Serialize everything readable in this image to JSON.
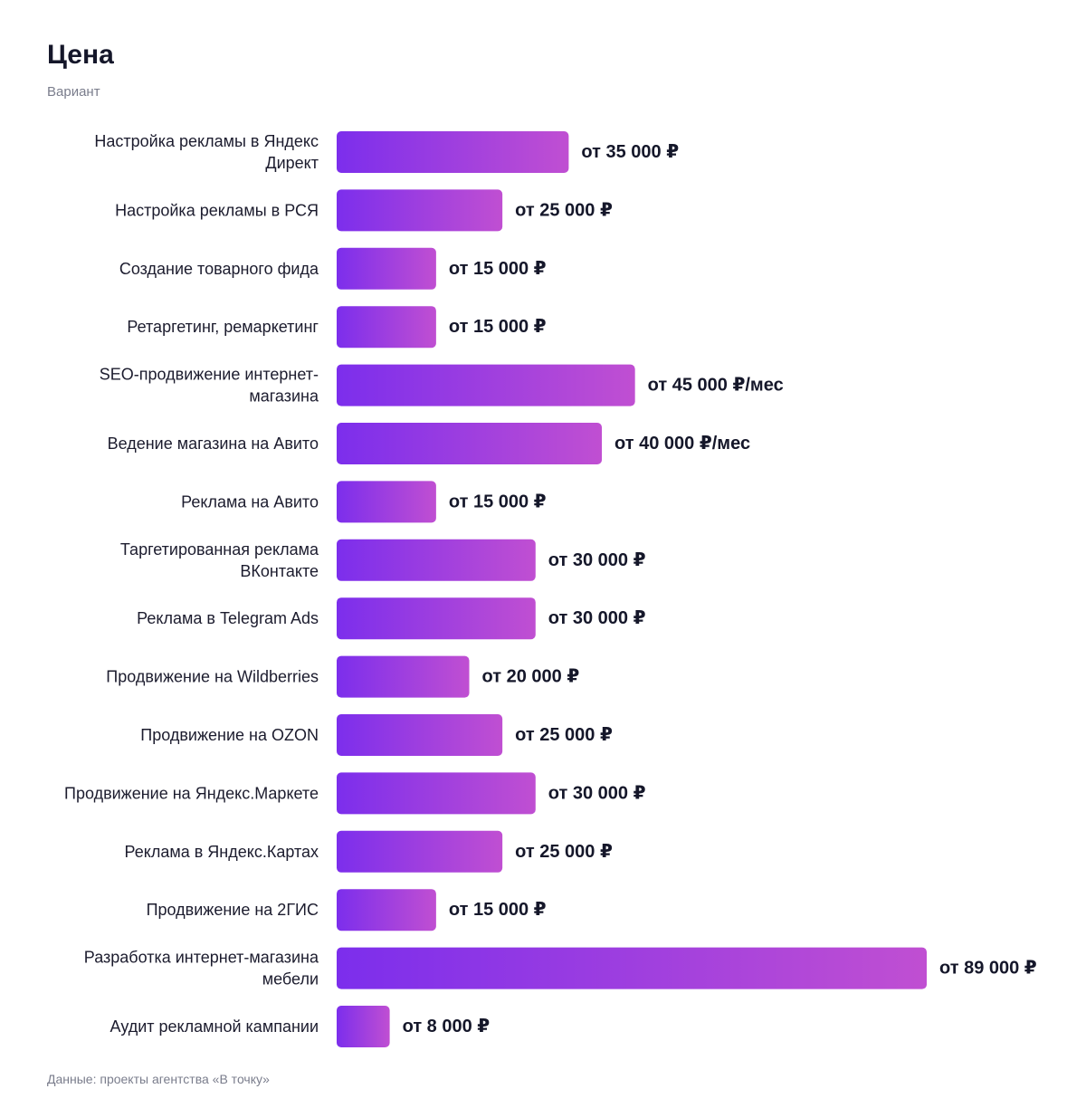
{
  "title": "Цена",
  "subtitle": "Вариант",
  "source": "Данные: проекты агентства «В точку»",
  "colors": {
    "bar_gradient_start": "#7c2eec",
    "bar_gradient_end": "#c04fd2",
    "label": "#1c1c2e",
    "value": "#15172a"
  },
  "chart_data": {
    "type": "bar",
    "orientation": "horizontal",
    "categories": [
      [
        "Настройка рекламы в Яндекс",
        "Директ"
      ],
      [
        "Настройка рекламы в РСЯ"
      ],
      [
        "Создание товарного фида"
      ],
      [
        "Ретаргетинг, ремаркетинг"
      ],
      [
        "SEO-продвижение интернет-",
        "магазина"
      ],
      [
        "Ведение магазина на Авито"
      ],
      [
        "Реклама на Авито"
      ],
      [
        "Таргетированная реклама",
        "ВКонтакте"
      ],
      [
        "Реклама в Telegram Ads"
      ],
      [
        "Продвижение на Wildberries"
      ],
      [
        "Продвижение на OZON"
      ],
      [
        "Продвижение на Яндекс.Маркете"
      ],
      [
        "Реклама в Яндекс.Картах"
      ],
      [
        "Продвижение на 2ГИС"
      ],
      [
        "Разработка интернет-магазина",
        "мебели"
      ],
      [
        "Аудит рекламной кампании"
      ]
    ],
    "values": [
      35000,
      25000,
      15000,
      15000,
      45000,
      40000,
      15000,
      30000,
      30000,
      20000,
      25000,
      30000,
      25000,
      15000,
      89000,
      8000
    ],
    "value_labels": [
      "от 35 000 ₽",
      "от 25 000 ₽",
      "от 15 000 ₽",
      "от 15 000 ₽",
      "от 45 000 ₽/мес",
      "от 40 000 ₽/мес",
      "от 15 000 ₽",
      "от 30 000 ₽",
      "от 30 000 ₽",
      "от 20 000 ₽",
      "от 25 000 ₽",
      "от 30 000 ₽",
      "от 25 000 ₽",
      "от 15 000 ₽",
      "от 89 000 ₽",
      "от 8 000 ₽"
    ],
    "title": "Цена",
    "subtitle": "Вариант",
    "xlim": [
      0,
      89000
    ]
  }
}
